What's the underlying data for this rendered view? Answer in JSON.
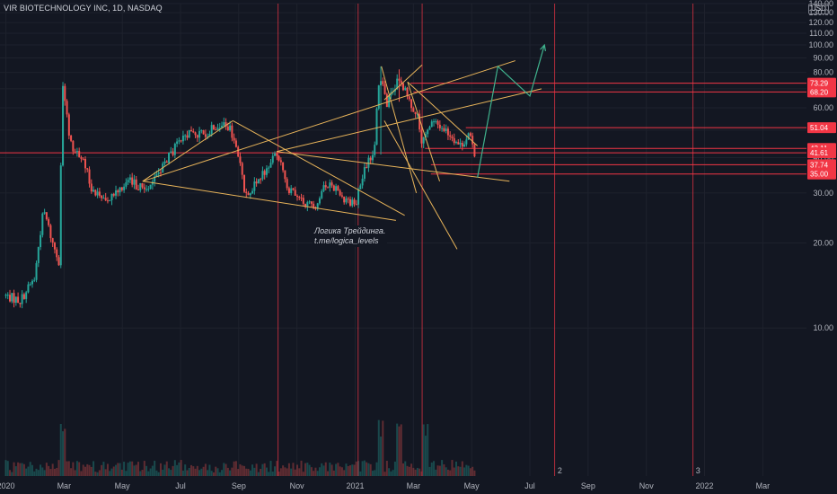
{
  "header": {
    "symbol": "VIR BIOTECHNOLOGY INC, 1D, NASDAQ",
    "currency": "USD"
  },
  "annotation": {
    "line1": "Логика Трейдинга.",
    "line2": "t.me/logica_levels"
  },
  "chart_data": {
    "type": "candlestick",
    "ylim": [
      3,
      140
    ],
    "price_ticks": [
      10,
      20,
      30,
      40,
      50,
      60,
      70,
      80,
      90,
      100,
      110,
      120,
      130,
      140
    ],
    "price_tick_labels": [
      "10.00",
      "20.00",
      "30.00",
      "40.00",
      "50.00",
      "60.00",
      "70.00",
      "80.00",
      "90.00",
      "100.00",
      "110.00",
      "120.00",
      "130.00",
      "140.00"
    ],
    "time_labels": [
      "2020",
      "Mar",
      "May",
      "Jul",
      "Sep",
      "Nov",
      "2021",
      "Mar",
      "May",
      "Jul",
      "Sep",
      "Nov",
      "2022",
      "Mar"
    ],
    "time_label_months": [
      0,
      2,
      4,
      6,
      8,
      10,
      12,
      14,
      16,
      18,
      20,
      22,
      24,
      26
    ],
    "xlim_months": [
      -0.2,
      27.5
    ],
    "last_data_month": 16.15,
    "bar_step_months": 0.07,
    "key_prices": [
      {
        "month": 0.0,
        "price": 13
      },
      {
        "month": 0.5,
        "price": 12.5
      },
      {
        "month": 1.0,
        "price": 15
      },
      {
        "month": 1.3,
        "price": 26
      },
      {
        "month": 1.6,
        "price": 20
      },
      {
        "month": 1.85,
        "price": 17
      },
      {
        "month": 1.95,
        "price": 70
      },
      {
        "month": 2.2,
        "price": 45
      },
      {
        "month": 2.6,
        "price": 40
      },
      {
        "month": 3.0,
        "price": 30
      },
      {
        "month": 3.5,
        "price": 29
      },
      {
        "month": 4.2,
        "price": 33
      },
      {
        "month": 4.8,
        "price": 31
      },
      {
        "month": 5.3,
        "price": 36
      },
      {
        "month": 5.8,
        "price": 43
      },
      {
        "month": 6.3,
        "price": 49
      },
      {
        "month": 6.8,
        "price": 48
      },
      {
        "month": 7.3,
        "price": 53
      },
      {
        "month": 7.7,
        "price": 50
      },
      {
        "month": 8.0,
        "price": 40
      },
      {
        "month": 8.2,
        "price": 30
      },
      {
        "month": 8.6,
        "price": 32
      },
      {
        "month": 9.0,
        "price": 37
      },
      {
        "month": 9.3,
        "price": 42
      },
      {
        "month": 9.7,
        "price": 31
      },
      {
        "month": 10.1,
        "price": 28
      },
      {
        "month": 10.6,
        "price": 27
      },
      {
        "month": 11.1,
        "price": 33
      },
      {
        "month": 11.6,
        "price": 29
      },
      {
        "month": 12.0,
        "price": 27
      },
      {
        "month": 12.4,
        "price": 38
      },
      {
        "month": 12.65,
        "price": 42
      },
      {
        "month": 12.85,
        "price": 78
      },
      {
        "month": 13.1,
        "price": 62
      },
      {
        "month": 13.5,
        "price": 76
      },
      {
        "month": 13.9,
        "price": 62
      },
      {
        "month": 14.1,
        "price": 58
      },
      {
        "month": 14.3,
        "price": 44
      },
      {
        "month": 14.6,
        "price": 53
      },
      {
        "month": 14.9,
        "price": 52
      },
      {
        "month": 15.3,
        "price": 48
      },
      {
        "month": 15.6,
        "price": 44
      },
      {
        "month": 15.9,
        "price": 48
      },
      {
        "month": 16.15,
        "price": 40
      }
    ],
    "spikes": [
      {
        "month": 1.95,
        "high": 74,
        "low": 45
      },
      {
        "month": 12.85,
        "high": 84,
        "low": 41
      },
      {
        "month": 13.5,
        "high": 82,
        "low": 63
      }
    ],
    "horizontal_levels": [
      {
        "price": 73.29,
        "label": "73.29",
        "from_month": 13.9,
        "color": "#f23645"
      },
      {
        "price": 68.2,
        "label": "68.20",
        "from_month": 14.0,
        "color": "#f23645"
      },
      {
        "price": 51.04,
        "label": "51.04",
        "from_month": 15.8,
        "color": "#f23645"
      },
      {
        "price": 43.11,
        "label": "43.11",
        "from_month": 14.4,
        "color": "#f23645"
      },
      {
        "price": 41.61,
        "label": "41.61",
        "from_month": -0.2,
        "color": "#f23645"
      },
      {
        "price": 37.74,
        "label": "37.74",
        "from_month": 14.6,
        "color": "#f23645"
      },
      {
        "price": 35.0,
        "label": "35.00",
        "from_month": 14.6,
        "color": "#f23645"
      }
    ],
    "vertical_markers": [
      {
        "month": 9.35,
        "color": "#f23645"
      },
      {
        "month": 12.1,
        "color": "#f23645"
      },
      {
        "month": 14.3,
        "color": "#f23645"
      },
      {
        "month": 18.85,
        "color": "#f23645"
      },
      {
        "month": 23.6,
        "color": "#f23645"
      }
    ],
    "marker_labels": [
      {
        "month": 18.95,
        "text": "2"
      },
      {
        "month": 23.7,
        "text": "3"
      }
    ],
    "trendlines": [
      {
        "from": [
          4.7,
          33
        ],
        "to": [
          13.4,
          24
        ]
      },
      {
        "from": [
          4.7,
          33
        ],
        "to": [
          7.8,
          54
        ]
      },
      {
        "from": [
          7.8,
          54
        ],
        "to": [
          13.7,
          25
        ]
      },
      {
        "from": [
          4.7,
          33
        ],
        "to": [
          17.5,
          88
        ]
      },
      {
        "from": [
          9.3,
          42
        ],
        "to": [
          17.3,
          33
        ]
      },
      {
        "from": [
          9.3,
          42
        ],
        "to": [
          18.4,
          70
        ]
      },
      {
        "from": [
          13.0,
          54
        ],
        "to": [
          15.5,
          19
        ]
      },
      {
        "from": [
          13.8,
          74
        ],
        "to": [
          14.9,
          33
        ]
      },
      {
        "from": [
          14.3,
          85
        ],
        "to": [
          13.0,
          64
        ]
      },
      {
        "from": [
          13.8,
          74
        ],
        "to": [
          16.2,
          44
        ]
      },
      {
        "from": [
          12.9,
          84
        ],
        "to": [
          14.1,
          30
        ]
      }
    ],
    "projection": [
      {
        "month": 16.2,
        "price": 34
      },
      {
        "month": 16.9,
        "price": 84
      },
      {
        "month": 18.0,
        "price": 66
      },
      {
        "month": 18.5,
        "price": 100
      }
    ],
    "volume_spikes_month": [
      1.95,
      12.85,
      13.5,
      14.4
    ]
  }
}
